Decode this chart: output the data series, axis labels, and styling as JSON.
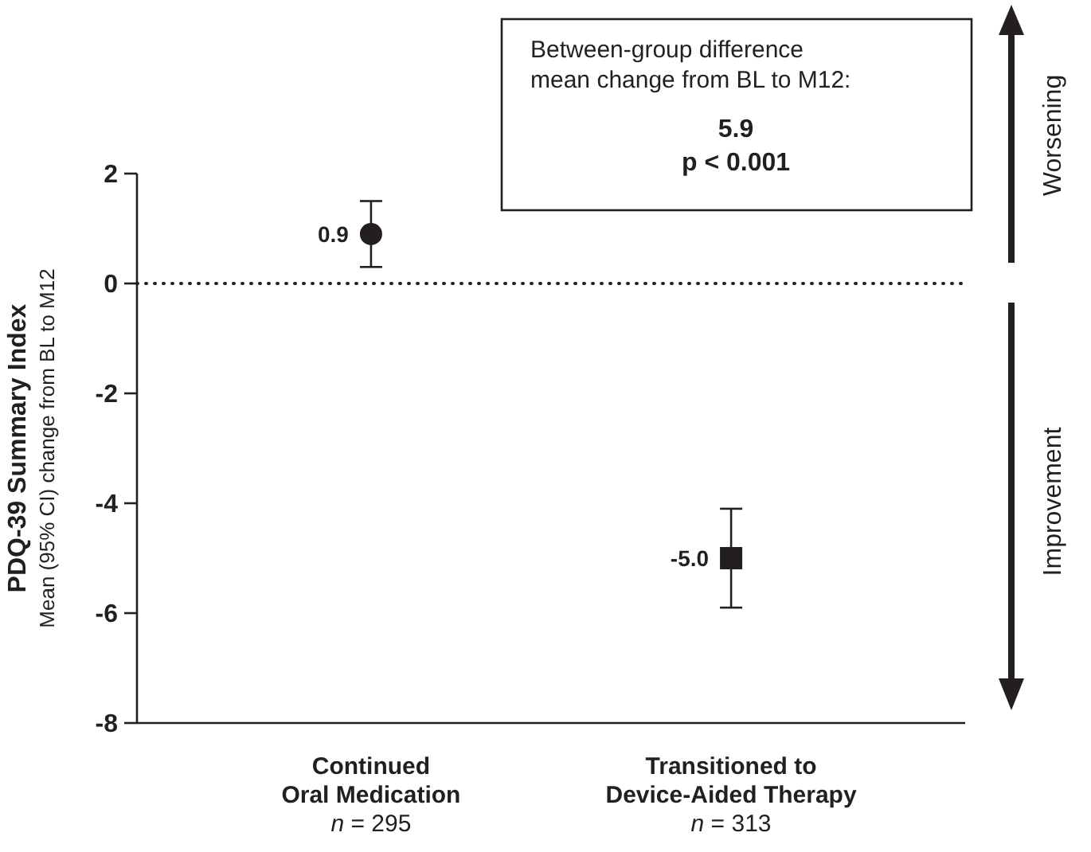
{
  "chart_data": {
    "type": "scatter",
    "ylabel": "PDQ-39 Summary Index\nMean (95% CI) change from BL to M12",
    "categories": [
      "Continued\nOral Medication\nn = 295",
      "Transitioned to\nDevice-Aided Therapy\nn = 313"
    ],
    "series": [
      {
        "color": "#231f20",
        "marker": "circle",
        "values": [
          0.9,
          null
        ],
        "errors": [
          [
            0.3,
            1.5
          ],
          null
        ],
        "value_labels": [
          "0.9",
          null
        ]
      },
      {
        "color": "#231f20",
        "marker": "square",
        "values": [
          null,
          -5.0
        ],
        "errors": [
          null,
          [
            -5.9,
            -4.1
          ]
        ],
        "value_labels": [
          null,
          "-5.0"
        ]
      }
    ],
    "ylim": [
      -8,
      2
    ],
    "yticks": [
      -8,
      -6,
      -4,
      -2,
      0,
      2
    ],
    "grid": false,
    "ref_lines": [
      {
        "axis": "y",
        "value": 0,
        "line_style": "dotted",
        "color": "#231f20"
      }
    ],
    "annotations": [
      "Between-group difference\nmean change from BL to M12:",
      "5.9\np < 0.001",
      "Worsening",
      "Improvement"
    ]
  }
}
